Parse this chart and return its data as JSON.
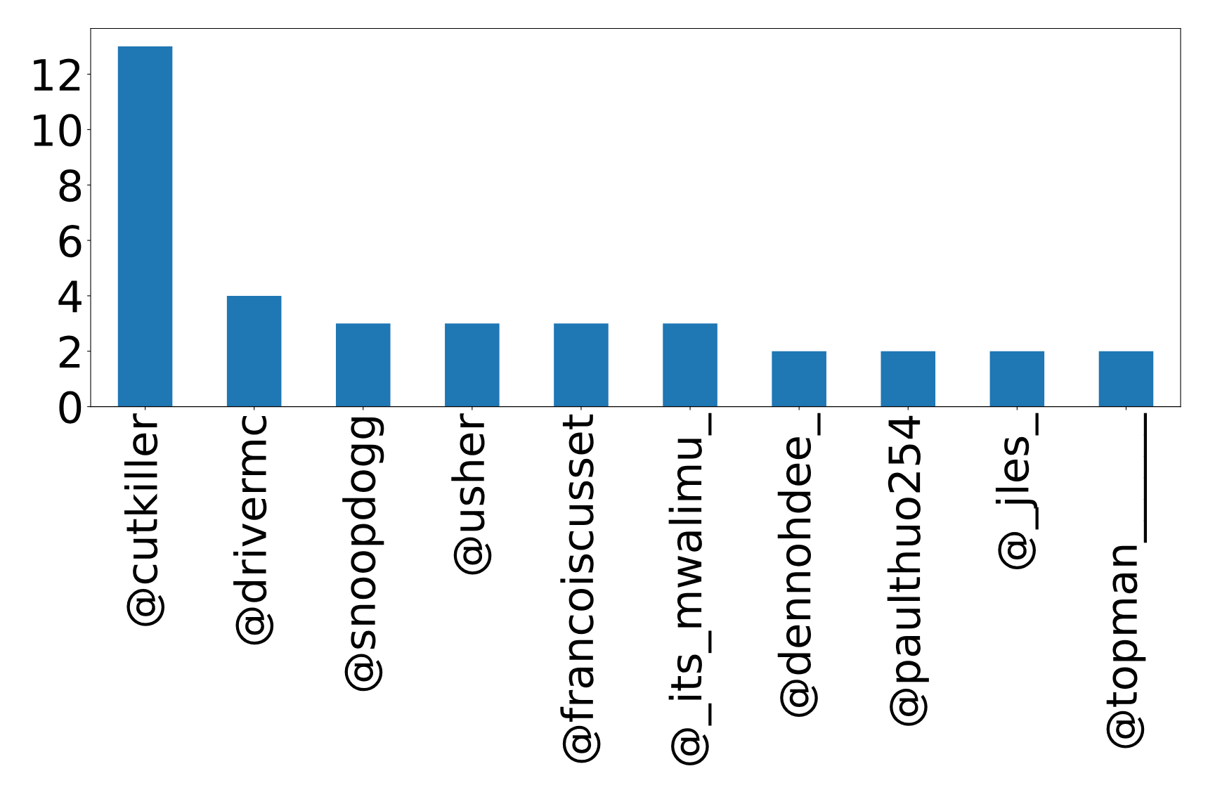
{
  "chart_data": {
    "type": "bar",
    "categories": [
      "@cutkiller",
      "@drivermc",
      "@snoopdogg",
      "@usher",
      "@francoiscusset",
      "@_its_mwalimu_",
      "@dennohdee_",
      "@paulthuo254",
      "@_jles_",
      "@topman______"
    ],
    "values": [
      13,
      4,
      3,
      3,
      3,
      3,
      2,
      2,
      2,
      2
    ],
    "color": "#1f77b4",
    "ylim": [
      0,
      13.65
    ],
    "yticks": [
      0,
      2,
      4,
      6,
      8,
      10,
      12
    ],
    "grid": false,
    "legend": false
  }
}
